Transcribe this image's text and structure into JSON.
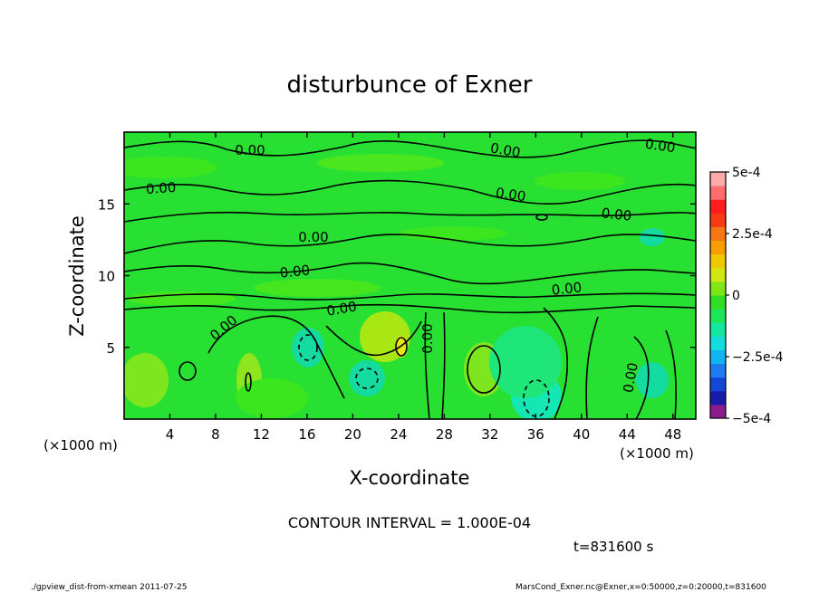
{
  "chart_data": {
    "type": "heatmap",
    "title": "disturbunce of Exner",
    "xlabel": "X-coordinate",
    "ylabel": "Z-coordinate",
    "x_unit_left": "(×1000 m)",
    "x_unit_right": "(×1000 m)",
    "xlim": [
      0,
      50
    ],
    "ylim": [
      0,
      20
    ],
    "x_ticks": [
      4,
      8,
      12,
      16,
      20,
      24,
      28,
      32,
      36,
      40,
      44,
      48
    ],
    "y_ticks": [
      5,
      10,
      15
    ],
    "contour_interval_text": "CONTOUR INTERVAL = 1.000E-04",
    "time_text": "t=831600 s",
    "contour_labels": [
      "0.00"
    ],
    "colorbar": {
      "range": [
        -0.0005,
        0.0005
      ],
      "tick_labels": [
        "5e-4",
        "2.5e-4",
        "0",
        "−2.5e-4",
        "−5e-4"
      ],
      "tick_values": [
        0.0005,
        0.00025,
        0,
        -0.00025,
        -0.0005
      ],
      "colors": [
        "#8b1c8b",
        "#1a1aa8",
        "#1446d8",
        "#1e7cf0",
        "#12b4f0",
        "#14dcdc",
        "#14e6a0",
        "#1ee65a",
        "#32dc28",
        "#7de614",
        "#d2e614",
        "#f0c800",
        "#f5a000",
        "#f57814",
        "#f53c14",
        "#ff1e1e",
        "#ff6e6e",
        "#ffaaaa"
      ]
    },
    "colors": {
      "background_field": "#28e032",
      "contour_line": "#000000"
    }
  },
  "footer": {
    "left": "./gpview_dist-from-xmean  2011-07-25",
    "right": "MarsCond_Exner.nc@Exner,x=0:50000,z=0:20000,t=831600"
  }
}
